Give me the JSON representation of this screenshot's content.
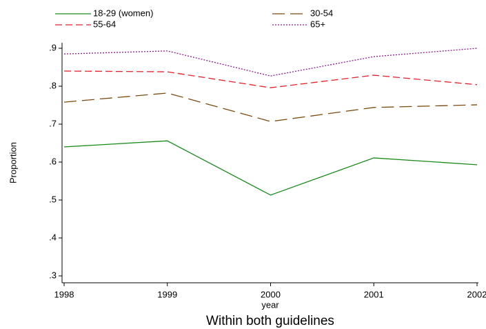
{
  "chart_data": {
    "type": "line",
    "title": "Within both guidelines",
    "x_label": "year",
    "y_label": "Proportion",
    "x": [
      1998,
      1999,
      2000,
      2001,
      2002
    ],
    "xlim": [
      1998,
      2002
    ],
    "xticks": [
      1998,
      1999,
      2000,
      2001,
      2002
    ],
    "ylim": [
      0.3,
      0.9
    ],
    "yticks": [
      {
        "value": 0.3,
        "label": ".3"
      },
      {
        "value": 0.4,
        "label": ".4"
      },
      {
        "value": 0.5,
        "label": ".5"
      },
      {
        "value": 0.6,
        "label": ".6"
      },
      {
        "value": 0.7,
        "label": ".7"
      },
      {
        "value": 0.8,
        "label": ".8"
      },
      {
        "value": 0.9,
        "label": ".9"
      }
    ],
    "grid": false,
    "legend": "top",
    "series": [
      {
        "name": "18-29 (women)",
        "color": "#1a8a1a",
        "dash": "solid",
        "values": [
          0.64,
          0.656,
          0.513,
          0.611,
          0.593
        ]
      },
      {
        "name": "30-54",
        "color": "#7a4a10",
        "dash": "long",
        "values": [
          0.758,
          0.782,
          0.707,
          0.744,
          0.751
        ]
      },
      {
        "name": "55-64",
        "color": "#e0202a",
        "dash": "dash",
        "values": [
          0.84,
          0.838,
          0.796,
          0.829,
          0.804
        ]
      },
      {
        "name": "65+",
        "color": "#8b1a8b",
        "dash": "dot",
        "values": [
          0.885,
          0.893,
          0.827,
          0.878,
          0.9
        ]
      }
    ]
  }
}
